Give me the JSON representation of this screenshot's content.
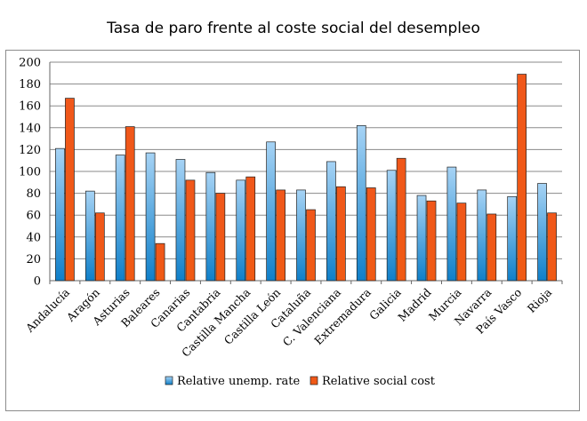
{
  "chart_data": {
    "type": "bar",
    "title": "Tasa de paro frente al coste social del desempleo",
    "categories": [
      "Andalucía",
      "Aragón",
      "Asturias",
      "Baleares",
      "Canarias",
      "Cantabria",
      "Castilla Mancha",
      "Castilla León",
      "Cataluña",
      "C. Valenciana",
      "Extremadura",
      "Galicia",
      "Madrid",
      "Murcia",
      "Navarra",
      "País Vasco",
      "Rioja"
    ],
    "series": [
      {
        "name": "Relative unemp. rate",
        "color": "#5aaee8",
        "values": [
          121,
          82,
          115,
          117,
          111,
          99,
          92,
          127,
          83,
          109,
          142,
          101,
          78,
          104,
          83,
          77,
          89
        ]
      },
      {
        "name": "Relative social cost",
        "color": "#f05a14",
        "values": [
          167,
          62,
          141,
          34,
          92,
          80,
          95,
          83,
          65,
          86,
          85,
          112,
          73,
          71,
          61,
          189,
          62
        ]
      }
    ],
    "ylim": [
      0,
      200
    ],
    "yticks": [
      0,
      20,
      40,
      60,
      80,
      100,
      120,
      140,
      160,
      180,
      200
    ],
    "grid": true,
    "legend_position": "bottom"
  }
}
